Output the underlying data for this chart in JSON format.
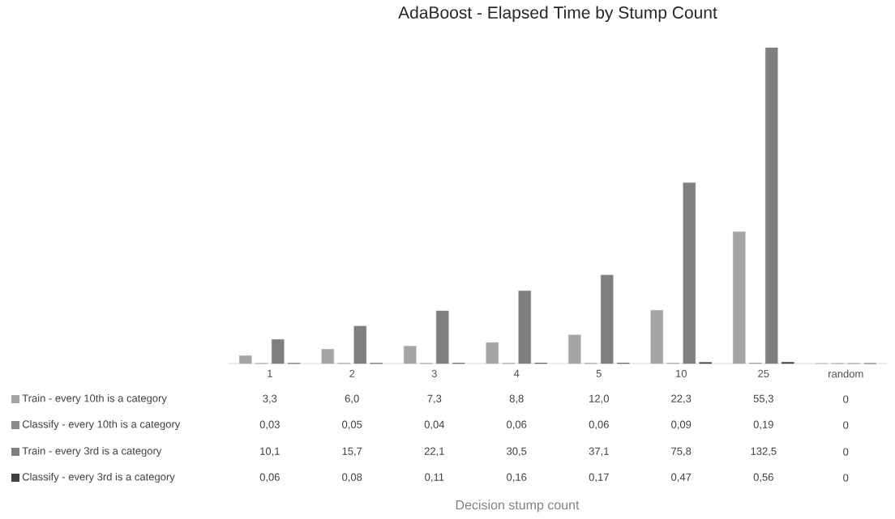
{
  "chart_data": {
    "type": "bar",
    "title": "AdaBoost - Elapsed Time by Stump Count",
    "annotations": [
      "Decision stump count"
    ],
    "categories": [
      "1",
      "2",
      "3",
      "4",
      "5",
      "10",
      "25",
      "random"
    ],
    "series": [
      {
        "name": "Train - every 10th is a category",
        "color": "#a5a5a5",
        "values": [
          3.3,
          6.0,
          7.3,
          8.8,
          12.0,
          22.3,
          55.3,
          0
        ],
        "value_labels": [
          "3,3",
          "6,0",
          "7,3",
          "8,8",
          "12,0",
          "22,3",
          "55,3",
          "0"
        ]
      },
      {
        "name": "Classify - every 10th is a category",
        "color": "#8c8c8c",
        "values": [
          0.03,
          0.05,
          0.04,
          0.06,
          0.06,
          0.09,
          0.19,
          0
        ],
        "value_labels": [
          "0,03",
          "0,05",
          "0,04",
          "0,06",
          "0,06",
          "0,09",
          "0,19",
          "0"
        ]
      },
      {
        "name": "Train - every 3rd is a category",
        "color": "#7f7f7f",
        "values": [
          10.1,
          15.7,
          22.1,
          30.5,
          37.1,
          75.8,
          132.5,
          0
        ],
        "value_labels": [
          "10,1",
          "15,7",
          "22,1",
          "30,5",
          "37,1",
          "75,8",
          "132,5",
          "0"
        ]
      },
      {
        "name": "Classify - every 3rd is a category",
        "color": "#404040",
        "values": [
          0.06,
          0.08,
          0.11,
          0.16,
          0.17,
          0.47,
          0.56,
          0
        ],
        "value_labels": [
          "0,06",
          "0,08",
          "0,11",
          "0,16",
          "0,17",
          "0,47",
          "0,56",
          "0"
        ]
      }
    ],
    "legend": "bottom left"
  }
}
